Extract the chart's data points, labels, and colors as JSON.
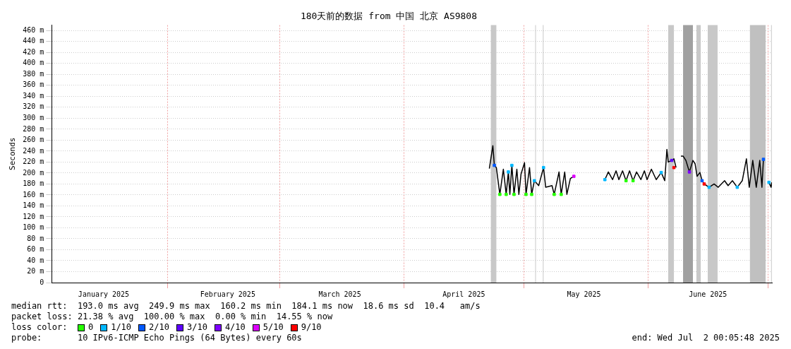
{
  "chart_data": {
    "type": "line",
    "title": "180天前的数据 from 中国 北京 AS9808",
    "ylabel": "Seconds",
    "legend_title": "loss color:",
    "legend": "bottom",
    "grid": true,
    "line_style": "solid",
    "xlim": [
      "2025-01-03T00:05",
      "2025-07-02T00:05"
    ],
    "xticks": [
      {
        "value": "2025-01-16",
        "label": "January 2025"
      },
      {
        "value": "2025-02-01",
        "label": null
      },
      {
        "value": "2025-02-16",
        "label": "February 2025"
      },
      {
        "value": "2025-03-01",
        "label": null
      },
      {
        "value": "2025-03-16",
        "label": "March 2025"
      },
      {
        "value": "2025-04-01",
        "label": null
      },
      {
        "value": "2025-04-16",
        "label": "April 2025"
      },
      {
        "value": "2025-05-01",
        "label": null
      },
      {
        "value": "2025-05-16",
        "label": "May 2025"
      },
      {
        "value": "2025-06-01",
        "label": null
      },
      {
        "value": "2025-06-16",
        "label": "June 2025"
      },
      {
        "value": "2025-07-01",
        "label": null
      }
    ],
    "ylim": [
      0,
      470
    ],
    "yticks": [
      0,
      {
        "value": 20,
        "label": "20 m"
      },
      {
        "value": 40,
        "label": "40 m"
      },
      {
        "value": 60,
        "label": "60 m"
      },
      {
        "value": 80,
        "label": "80 m"
      },
      {
        "value": 100,
        "label": "100 m"
      },
      {
        "value": 120,
        "label": "120 m"
      },
      {
        "value": 140,
        "label": "140 m"
      },
      {
        "value": 160,
        "label": "160 m"
      },
      {
        "value": 180,
        "label": "180 m"
      },
      {
        "value": 200,
        "label": "200 m"
      },
      {
        "value": 220,
        "label": "220 m"
      },
      {
        "value": 240,
        "label": "240 m"
      },
      {
        "value": 260,
        "label": "260 m"
      },
      {
        "value": 280,
        "label": "280 m"
      },
      {
        "value": 300,
        "label": "300 m"
      },
      {
        "value": 320,
        "label": "320 m"
      },
      {
        "value": 340,
        "label": "340 m"
      },
      {
        "value": 360,
        "label": "360 m"
      },
      {
        "value": 380,
        "label": "380 m"
      },
      {
        "value": 400,
        "label": "400 m"
      },
      {
        "value": 420,
        "label": "420 m"
      },
      {
        "value": 440,
        "label": "440 m"
      },
      {
        "value": 460,
        "label": "460 m"
      }
    ],
    "bands": [
      {
        "axis": "x",
        "from": "2025-04-22T18:00",
        "to": "2025-04-24T03:00",
        "color": "#c8c8c8"
      },
      {
        "axis": "x",
        "from": "2025-05-03T20:00",
        "to": "2025-05-04T00:00",
        "color": "#c8c8c8"
      },
      {
        "axis": "x",
        "from": "2025-05-05T18:00",
        "to": "2025-05-05T22:00",
        "color": "#c8c8c8"
      },
      {
        "axis": "x",
        "from": "2025-06-06T02:00",
        "to": "2025-06-07T12:00",
        "color": "#c8c8c8"
      },
      {
        "axis": "x",
        "from": "2025-06-09T19:00",
        "to": "2025-06-12T06:00",
        "color": "#a0a0a0"
      },
      {
        "axis": "x",
        "from": "2025-06-13T03:00",
        "to": "2025-06-14T05:00",
        "color": "#c8c8c8"
      },
      {
        "axis": "x",
        "from": "2025-06-15T23:00",
        "to": "2025-06-18T10:00",
        "color": "#c8c8c8"
      },
      {
        "axis": "x",
        "from": "2025-06-26T12:00",
        "to": "2025-06-30T10:00",
        "color": "#c0c0c0"
      },
      {
        "axis": "x",
        "from": "2025-07-01T19:00",
        "to": "2025-07-01T23:00",
        "color": "#c8c8c8"
      }
    ],
    "series": [
      {
        "color": "#000000",
        "marker": "none",
        "x": [
          "2025-04-22T09:00",
          "2025-04-23T06:00",
          "2025-04-23T15:00",
          "2025-04-24T03:00",
          "2025-04-25T00:00",
          "2025-04-25T21:00",
          "2025-04-26T14:00",
          "2025-04-27T03:00",
          "2025-04-27T12:00",
          "2025-04-28T00:00",
          "2025-04-28T13:00",
          "2025-04-29T06:00",
          "2025-04-29T18:00",
          "2025-04-30T07:00",
          "2025-05-01T04:00",
          "2025-05-01T13:00",
          "2025-05-02T10:00",
          "2025-05-02T23:00",
          "2025-05-03T15:00",
          "2025-05-04T17:00",
          "2025-05-05T22:00",
          "2025-05-06T11:00",
          "2025-05-08T01:00",
          "2025-05-08T14:00",
          "2025-05-09T19:00",
          "2025-05-10T08:00",
          "2025-05-11T05:00",
          "2025-05-11T18:00",
          "2025-05-12T15:00",
          "2025-05-13T12:00",
          "2025-05-17T00:00",
          "2025-05-21T06:00",
          "2025-05-22T03:00",
          "2025-05-23T04:00",
          "2025-05-24T01:00",
          "2025-05-24T18:00",
          "2025-05-25T16:00",
          "2025-05-26T13:00",
          "2025-05-27T10:00",
          "2025-05-28T07:00",
          "2025-05-29T04:00",
          "2025-05-30T06:00",
          "2025-05-31T03:00",
          "2025-05-31T19:00",
          "2025-06-01T21:00",
          "2025-06-03T02:00",
          "2025-06-04T08:00",
          "2025-06-05T05:00",
          "2025-06-05T18:00",
          "2025-06-06T02:00",
          "2025-06-06T23:00",
          "2025-06-07T12:00",
          "2025-06-08T01:00",
          "2025-06-08T12:00",
          "2025-06-09T06:00",
          "2025-06-09T19:00",
          "2025-06-10T12:00",
          "2025-06-11T09:00",
          "2025-06-12T06:00",
          "2025-06-12T19:00",
          "2025-06-13T07:00",
          "2025-06-14T00:00",
          "2025-06-14T13:00",
          "2025-06-15T02:00",
          "2025-06-16T07:00",
          "2025-06-17T13:00",
          "2025-06-18T14:00",
          "2025-06-20T04:00",
          "2025-06-21T01:00",
          "2025-06-22T03:00",
          "2025-06-23T08:00",
          "2025-06-24T14:00",
          "2025-06-25T15:00",
          "2025-06-26T08:00",
          "2025-06-27T05:00",
          "2025-06-28T02:00",
          "2025-06-28T23:00",
          "2025-06-29T12:00",
          "2025-06-29T21:00",
          "2025-06-30T12:00",
          "2025-07-01T06:00",
          "2025-07-01T19:00",
          "2025-07-01T23:00"
        ],
        "values": [
          208,
          250,
          214,
          210,
          161,
          207,
          161,
          202,
          161,
          214,
          161,
          207,
          161,
          198,
          219,
          161,
          210,
          161,
          186,
          177,
          210,
          174,
          177,
          161,
          202,
          161,
          202,
          161,
          190,
          194,
          null,
          188,
          202,
          188,
          204,
          188,
          204,
          186,
          204,
          186,
          202,
          188,
          204,
          188,
          207,
          188,
          201,
          186,
          243,
          220,
          223,
          226,
          210,
          null,
          231,
          231,
          223,
          202,
          223,
          217,
          194,
          201,
          186,
          180,
          174,
          180,
          174,
          186,
          177,
          186,
          174,
          186,
          226,
          174,
          223,
          174,
          223,
          174,
          225,
          null,
          183,
          174,
          183
        ]
      },
      {
        "type": "scatter",
        "marker": "square",
        "name": "0",
        "color": "#26ff00",
        "x": [
          "2025-04-25T00:00",
          "2025-04-26T14:00",
          "2025-04-28T13:00",
          "2025-05-01T13:00",
          "2025-05-02T23:00",
          "2025-05-08T14:00",
          "2025-05-10T08:00",
          "2025-05-26T13:00",
          "2025-05-28T07:00"
        ],
        "values": [
          161,
          161,
          161,
          161,
          161,
          161,
          161,
          186,
          186
        ]
      },
      {
        "type": "scatter",
        "marker": "square",
        "name": "1/10",
        "color": "#00b8ff",
        "x": [
          "2025-04-27T03:00",
          "2025-04-28T00:00",
          "2025-05-03T15:00",
          "2025-05-05T22:00",
          "2025-05-21T06:00",
          "2025-06-04T08:00",
          "2025-06-16T07:00",
          "2025-06-23T08:00",
          "2025-07-01T06:00"
        ],
        "values": [
          202,
          214,
          186,
          210,
          188,
          201,
          174,
          174,
          183
        ]
      },
      {
        "type": "scatter",
        "marker": "square",
        "name": "2/10",
        "color": "#0059ff",
        "x": [
          "2025-04-23T15:00",
          "2025-06-14T13:00",
          "2025-06-29T21:00"
        ],
        "values": [
          214,
          186,
          225
        ]
      },
      {
        "type": "scatter",
        "marker": "square",
        "name": "3/10",
        "color": "#5e00ff",
        "x": [
          "2025-06-06T23:00"
        ],
        "values": [
          223
        ]
      },
      {
        "type": "scatter",
        "marker": "square",
        "name": "4/10",
        "color": "#7e00ff",
        "x": [
          "2025-06-11T09:00"
        ],
        "values": [
          202
        ]
      },
      {
        "type": "scatter",
        "marker": "square",
        "name": "5/10",
        "color": "#dd00ff",
        "x": [
          "2025-05-13T12:00"
        ],
        "values": [
          194
        ]
      },
      {
        "type": "scatter",
        "marker": "square",
        "name": "9/10",
        "color": "#ff0000",
        "x": [
          "2025-06-07T12:00",
          "2025-06-15T02:00"
        ],
        "values": [
          210,
          180
        ]
      }
    ],
    "annotations": [
      "median rtt:  193.0 ms avg  249.9 ms max  160.2 ms min  184.1 ms now  18.6 ms sd  10.4   am/s",
      "packet loss: 21.38 % avg  100.00 % max  0.00 % min  14.55 % now",
      "probe:       10 IPv6-ICMP Echo Pings (64 Bytes) every 60s",
      "end: Wed Jul  2 00:05:48 2025"
    ]
  }
}
